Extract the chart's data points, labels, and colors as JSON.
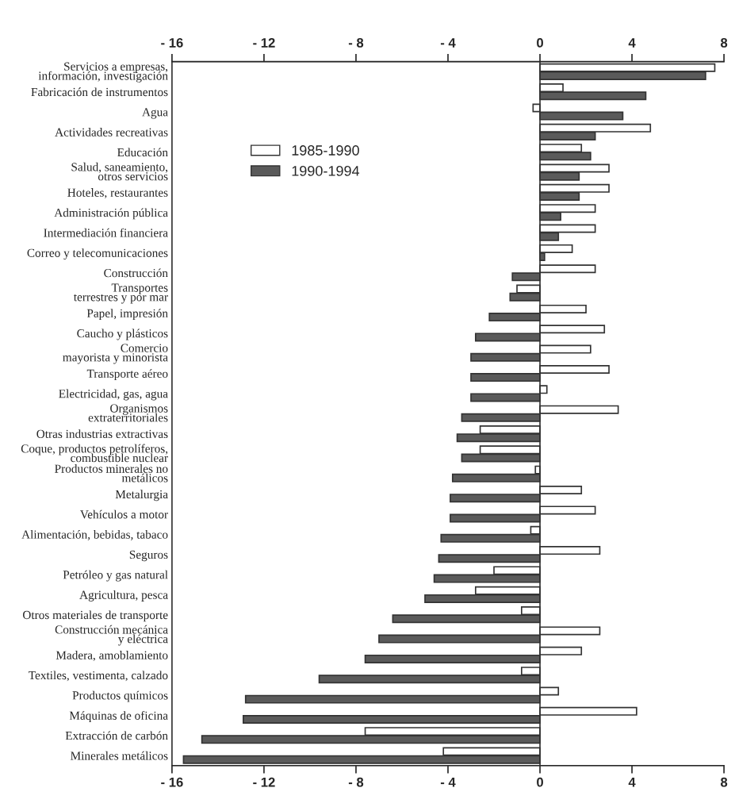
{
  "chart_data": {
    "type": "bar",
    "orientation": "horizontal",
    "categories": [
      "Servicios a empresas,\ninformación, investigación",
      "Fabricación de instrumentos",
      "Agua",
      "Actividades recreativas",
      "Educación",
      "Salud, saneamiento,\notros servicios",
      "Hoteles, restaurantes",
      "Administración pública",
      "Intermediación financiera",
      "Correo y telecomunicaciones",
      "Construcción",
      "Transportes\nterrestres y por mar",
      "Papel, impresión",
      "Caucho y plásticos",
      "Comercio\nmayorista y minorista",
      "Transporte aéreo",
      "Electricidad, gas, agua",
      "Organismos\nextraterritoriales",
      "Otras industrias extractivas",
      "Coque, productos petrolíferos,\ncombustible nuclear",
      "Productos minerales no\nmetálicos",
      "Metalurgia",
      "Vehículos a motor",
      "Alimentación, bebidas, tabaco",
      "Seguros",
      "Petróleo y gas natural",
      "Agricultura, pesca",
      "Otros materiales de transporte",
      "Construcción mecánica\ny eléctrica",
      "Madera, amoblamiento",
      "Textiles, vestimenta, calzado",
      "Productos químicos",
      "Máquinas de oficina",
      "Extracción de carbón",
      "Minerales metálicos"
    ],
    "series": [
      {
        "name": "1985-1990",
        "color": "#ffffff",
        "values": [
          7.6,
          1.0,
          -0.3,
          4.8,
          1.8,
          3.0,
          3.0,
          2.4,
          2.4,
          1.4,
          2.4,
          -1.0,
          2.0,
          2.8,
          2.2,
          3.0,
          0.3,
          3.4,
          -2.6,
          -2.6,
          -0.2,
          1.8,
          2.4,
          -0.4,
          2.6,
          -2.0,
          -2.8,
          -0.8,
          2.6,
          1.8,
          -0.8,
          0.8,
          4.2,
          -7.6,
          -4.2
        ]
      },
      {
        "name": "1990-1994",
        "color": "#5a5a5a",
        "values": [
          7.2,
          4.6,
          3.6,
          2.4,
          2.2,
          1.7,
          1.7,
          0.9,
          0.8,
          0.2,
          -1.2,
          -1.3,
          -2.2,
          -2.8,
          -3.0,
          -3.0,
          -3.0,
          -3.4,
          -3.6,
          -3.4,
          -3.8,
          -3.9,
          -3.9,
          -4.3,
          -4.4,
          -4.6,
          -5.0,
          -6.4,
          -7.0,
          -7.6,
          -9.6,
          -12.8,
          -12.9,
          -14.7,
          -15.5
        ]
      }
    ],
    "xlim": [
      -16,
      8
    ],
    "xticks": [
      {
        "value": -16,
        "label": "- 16"
      },
      {
        "value": -12,
        "label": "- 12"
      },
      {
        "value": -8,
        "label": "- 8"
      },
      {
        "value": -4,
        "label": "- 4"
      },
      0,
      4,
      8
    ],
    "x2lim": [
      -16,
      8
    ],
    "x2ticks": [
      {
        "value": -16,
        "label": "- 16"
      },
      {
        "value": -12,
        "label": "- 12"
      },
      {
        "value": -8,
        "label": "- 8"
      },
      {
        "value": -4,
        "label": "- 4"
      },
      0,
      4,
      8
    ],
    "ref_lines": [
      {
        "axis": "x",
        "value": 0,
        "color": "#333333"
      }
    ],
    "legend": "top left",
    "grid": false
  }
}
